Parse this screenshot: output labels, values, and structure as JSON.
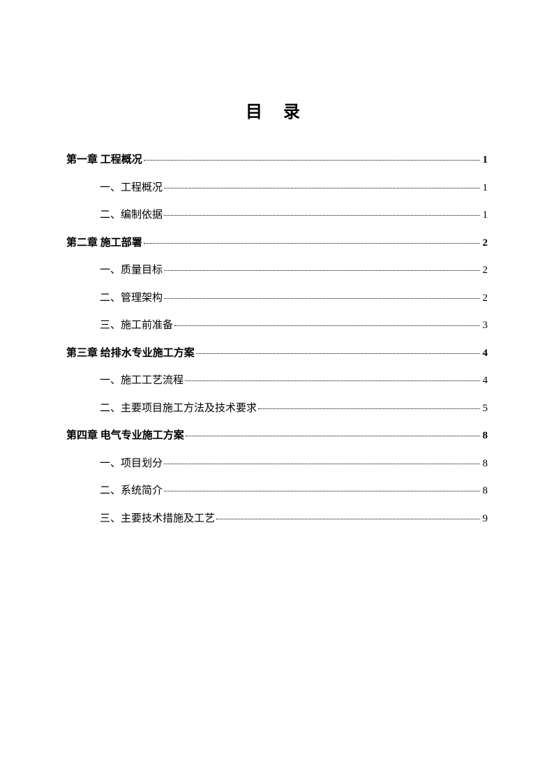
{
  "title": "目  录",
  "toc": [
    {
      "type": "chapter",
      "label": "第一章  工程概况",
      "page": "1"
    },
    {
      "type": "section",
      "label": "一、工程概况",
      "page": "1"
    },
    {
      "type": "section",
      "label": "二、编制依据",
      "page": "1"
    },
    {
      "type": "chapter",
      "label": "第二章  施工部署",
      "page": "2"
    },
    {
      "type": "section",
      "label": "一、质量目标",
      "page": "2"
    },
    {
      "type": "section",
      "label": "二、管理架构",
      "page": "2"
    },
    {
      "type": "section",
      "label": "三、施工前准备",
      "page": "3"
    },
    {
      "type": "chapter",
      "label": "第三章  给排水专业施工方案",
      "page": "4"
    },
    {
      "type": "section",
      "label": "一、施工工艺流程",
      "page": "4"
    },
    {
      "type": "section",
      "label": "二、主要项目施工方法及技术要求",
      "page": "5"
    },
    {
      "type": "chapter",
      "label": "第四章  电气专业施工方案",
      "page": "8"
    },
    {
      "type": "section",
      "label": "一、项目划分",
      "page": "8"
    },
    {
      "type": "section",
      "label": "二、系统简介",
      "page": "8"
    },
    {
      "type": "section",
      "label": "三、主要技术措施及工艺",
      "page": "9"
    }
  ],
  "colors": {
    "background": "#ffffff",
    "text": "#000000",
    "dots": "#000000"
  },
  "typography": {
    "title_fontsize": 24,
    "body_fontsize": 15,
    "font_family": "SimSun"
  }
}
